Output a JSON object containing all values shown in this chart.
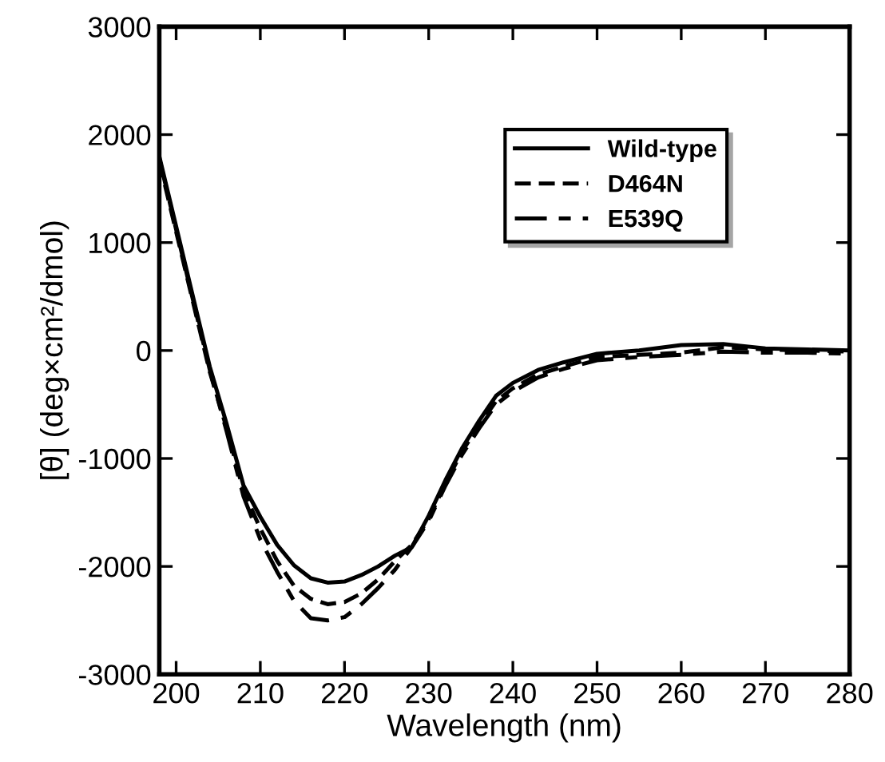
{
  "chart_data": {
    "type": "line",
    "xlabel": "Wavelength (nm)",
    "ylabel": "[θ] (deg×cm²/dmol)",
    "xlim": [
      198,
      280
    ],
    "ylim": [
      -3000,
      3000
    ],
    "xticks": [
      200,
      210,
      220,
      230,
      240,
      250,
      260,
      270,
      280
    ],
    "yticks": [
      -3000,
      -2000,
      -1000,
      0,
      1000,
      2000,
      3000
    ],
    "grid": false,
    "legend": "top right",
    "marker": "none",
    "series": [
      {
        "name": "Wild-type",
        "color": "#000000",
        "line_style": "solid",
        "x": [
          198,
          200,
          202,
          204,
          206,
          208,
          210,
          212,
          214,
          216,
          218,
          220,
          222,
          224,
          226,
          228,
          230,
          232,
          234,
          236,
          238,
          240,
          243,
          246,
          250,
          255,
          260,
          265,
          270,
          275,
          280
        ],
        "values": [
          1800,
          1150,
          500,
          -150,
          -680,
          -1250,
          -1540,
          -1800,
          -1990,
          -2110,
          -2150,
          -2140,
          -2080,
          -2000,
          -1900,
          -1820,
          -1530,
          -1200,
          -900,
          -650,
          -420,
          -300,
          -180,
          -110,
          -30,
          0,
          50,
          60,
          20,
          10,
          0
        ]
      },
      {
        "name": "D464N",
        "color": "#000000",
        "line_style": "dashed",
        "x": [
          198,
          200,
          202,
          204,
          206,
          208,
          210,
          212,
          214,
          216,
          218,
          220,
          222,
          224,
          226,
          228,
          230,
          232,
          234,
          236,
          238,
          240,
          243,
          246,
          250,
          255,
          260,
          265,
          270,
          275,
          280
        ],
        "values": [
          1750,
          1100,
          450,
          -200,
          -720,
          -1300,
          -1650,
          -1950,
          -2180,
          -2300,
          -2350,
          -2330,
          -2250,
          -2120,
          -1950,
          -1800,
          -1560,
          -1230,
          -930,
          -690,
          -470,
          -350,
          -220,
          -150,
          -60,
          -40,
          -20,
          30,
          10,
          0,
          -10
        ]
      },
      {
        "name": "E539Q",
        "color": "#000000",
        "line_style": "dashdot",
        "x": [
          198,
          200,
          202,
          204,
          206,
          208,
          210,
          212,
          214,
          216,
          218,
          220,
          222,
          224,
          226,
          228,
          230,
          232,
          234,
          236,
          238,
          240,
          243,
          246,
          250,
          255,
          260,
          265,
          270,
          275,
          280
        ],
        "values": [
          1780,
          1120,
          470,
          -180,
          -750,
          -1350,
          -1750,
          -2050,
          -2320,
          -2480,
          -2500,
          -2470,
          -2350,
          -2200,
          -2030,
          -1820,
          -1580,
          -1250,
          -960,
          -720,
          -500,
          -380,
          -250,
          -170,
          -90,
          -60,
          -40,
          -10,
          -20,
          -20,
          -30
        ]
      }
    ]
  }
}
